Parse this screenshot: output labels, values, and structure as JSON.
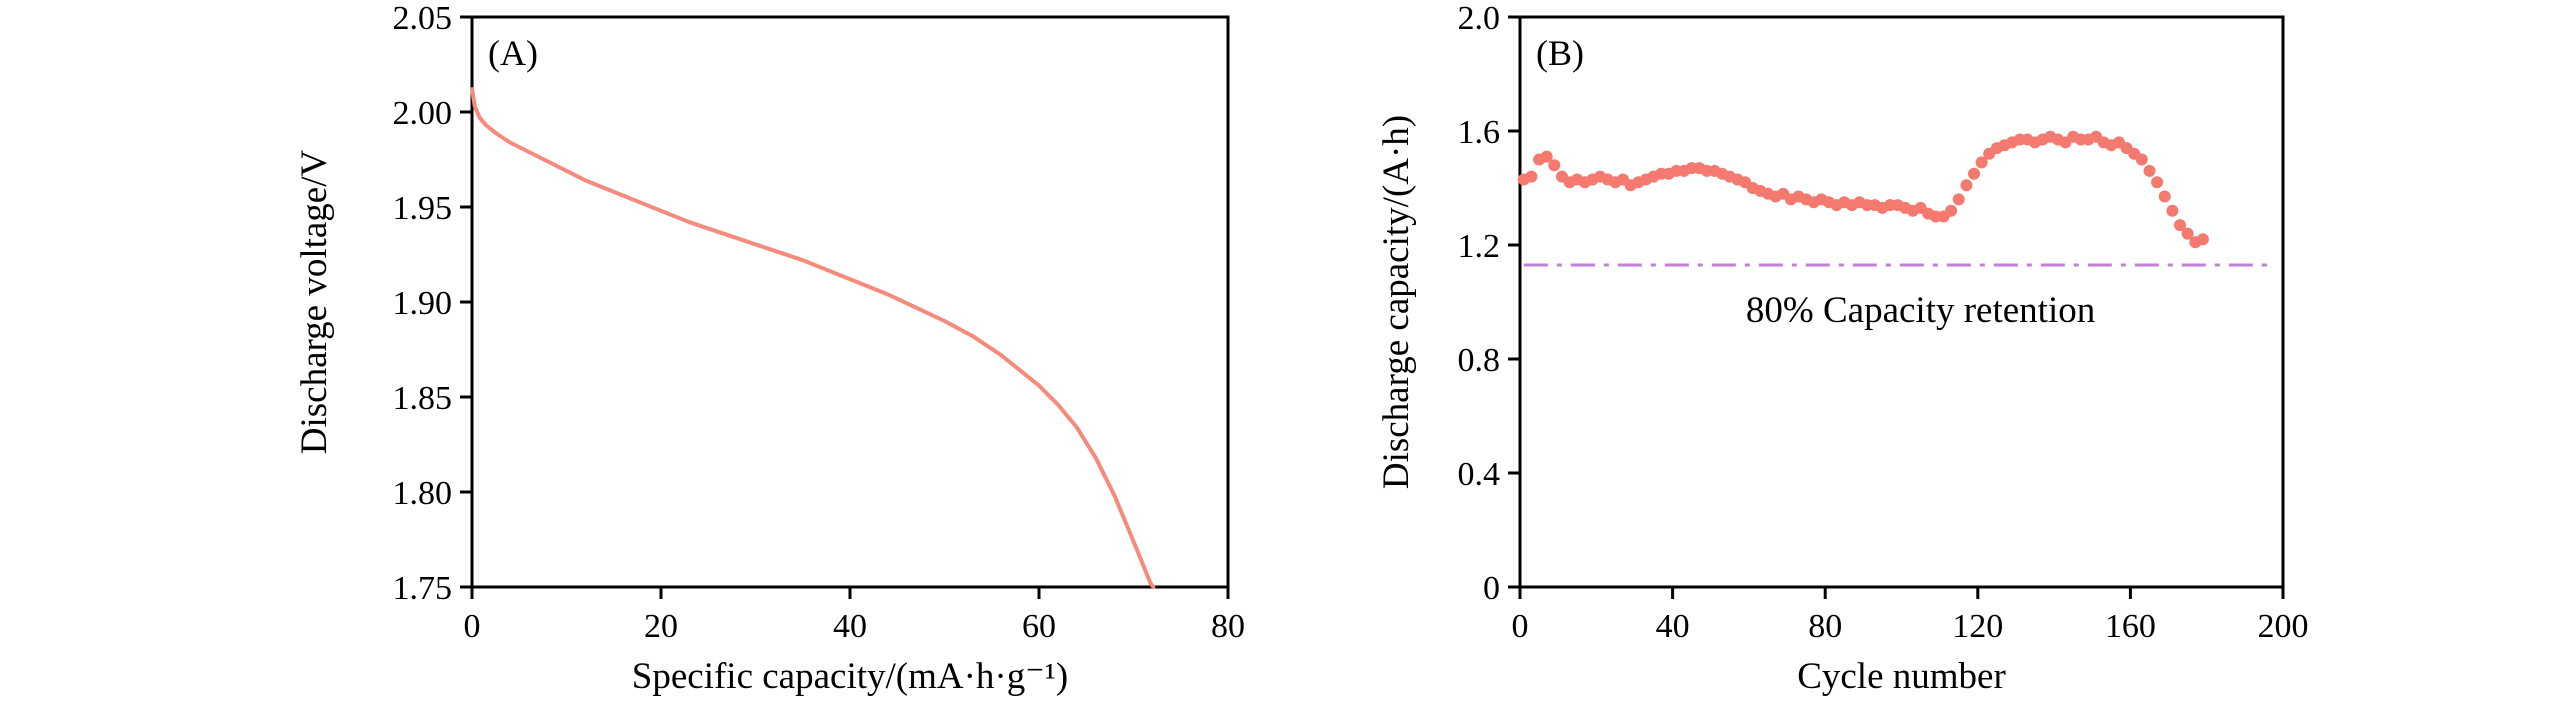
{
  "page": {
    "background": "#ffffff",
    "axis_color": "#000000",
    "accent_color": "#f4796e"
  },
  "chart_data": [
    {
      "type": "line",
      "panel_label": "(A)",
      "title": "",
      "xlabel": "Specific capacity/(mA·h·g⁻¹)",
      "ylabel": "Discharge voltage/V",
      "xlim": [
        0,
        80
      ],
      "ylim": [
        1.75,
        2.05
      ],
      "xticks": [
        0,
        20,
        40,
        60,
        80
      ],
      "xtick_labels": [
        "0",
        "20",
        "40",
        "60",
        "80"
      ],
      "yticks": [
        1.75,
        1.8,
        1.85,
        1.9,
        1.95,
        2.0,
        2.05
      ],
      "ytick_labels": [
        "1.75",
        "1.80",
        "1.85",
        "1.90",
        "1.95",
        "2.00",
        "2.05"
      ],
      "grid": false,
      "legend": "none",
      "color": "#f58a7d",
      "series": [
        {
          "name": "discharge-voltage-curve",
          "x": [
            0,
            0.3,
            0.8,
            1.5,
            2.5,
            4,
            6,
            8,
            10,
            12,
            14,
            16,
            18,
            20,
            23,
            26,
            29,
            32,
            35,
            38,
            41,
            44,
            47,
            50,
            53,
            56,
            58,
            60,
            62,
            64,
            66,
            68,
            69.5,
            70.5,
            71.3,
            71.8,
            72.1
          ],
          "y": [
            2.012,
            2.003,
            1.997,
            1.993,
            1.989,
            1.984,
            1.979,
            1.974,
            1.969,
            1.964,
            1.96,
            1.956,
            1.952,
            1.948,
            1.942,
            1.937,
            1.932,
            1.927,
            1.922,
            1.916,
            1.91,
            1.904,
            1.897,
            1.89,
            1.882,
            1.872,
            1.864,
            1.856,
            1.846,
            1.834,
            1.818,
            1.798,
            1.78,
            1.768,
            1.758,
            1.752,
            1.75
          ]
        }
      ]
    },
    {
      "type": "scatter",
      "panel_label": "(B)",
      "title": "",
      "xlabel": "Cycle number",
      "ylabel": "Discharge capacity/(A·h)",
      "xlim": [
        0,
        200
      ],
      "ylim": [
        0,
        2.0
      ],
      "xticks": [
        0,
        40,
        80,
        120,
        160,
        200
      ],
      "xtick_labels": [
        "0",
        "40",
        "80",
        "120",
        "160",
        "200"
      ],
      "yticks": [
        0,
        0.4,
        0.8,
        1.2,
        1.6,
        2.0
      ],
      "ytick_labels": [
        "0",
        "0.4",
        "0.8",
        "1.2",
        "1.6",
        "2.0"
      ],
      "grid": false,
      "legend": "none",
      "color": "#f4796e",
      "retention_line": {
        "y": 1.13,
        "x_range": [
          1,
          196
        ],
        "color": "#c17fd6",
        "style": "dash-dot",
        "label": "80% Capacity retention",
        "label_x": 105,
        "label_y": 0.93
      },
      "series": [
        {
          "name": "discharge-capacity-points",
          "x": [
            1,
            3,
            5,
            7,
            9,
            11,
            13,
            15,
            17,
            19,
            21,
            23,
            25,
            27,
            29,
            31,
            33,
            35,
            37,
            39,
            41,
            43,
            45,
            47,
            49,
            51,
            53,
            55,
            57,
            59,
            61,
            63,
            65,
            67,
            69,
            71,
            73,
            75,
            77,
            79,
            81,
            83,
            85,
            87,
            89,
            91,
            93,
            95,
            97,
            99,
            101,
            103,
            105,
            107,
            109,
            111,
            113,
            115,
            117,
            119,
            121,
            123,
            125,
            127,
            129,
            131,
            133,
            135,
            137,
            139,
            141,
            143,
            145,
            147,
            149,
            151,
            153,
            155,
            157,
            159,
            161,
            163,
            165,
            167,
            169,
            171,
            173,
            175,
            177,
            179
          ],
          "y": [
            1.43,
            1.44,
            1.5,
            1.51,
            1.48,
            1.44,
            1.42,
            1.43,
            1.42,
            1.43,
            1.44,
            1.43,
            1.42,
            1.43,
            1.41,
            1.42,
            1.43,
            1.44,
            1.45,
            1.45,
            1.46,
            1.46,
            1.47,
            1.47,
            1.46,
            1.46,
            1.45,
            1.44,
            1.43,
            1.42,
            1.4,
            1.39,
            1.38,
            1.37,
            1.38,
            1.36,
            1.37,
            1.36,
            1.35,
            1.36,
            1.35,
            1.34,
            1.35,
            1.34,
            1.35,
            1.34,
            1.34,
            1.33,
            1.34,
            1.34,
            1.33,
            1.32,
            1.33,
            1.31,
            1.3,
            1.3,
            1.32,
            1.36,
            1.41,
            1.45,
            1.49,
            1.52,
            1.54,
            1.55,
            1.56,
            1.57,
            1.57,
            1.56,
            1.57,
            1.58,
            1.57,
            1.56,
            1.58,
            1.57,
            1.57,
            1.58,
            1.56,
            1.55,
            1.56,
            1.54,
            1.52,
            1.5,
            1.46,
            1.42,
            1.37,
            1.32,
            1.27,
            1.24,
            1.21,
            1.22
          ]
        }
      ]
    }
  ]
}
